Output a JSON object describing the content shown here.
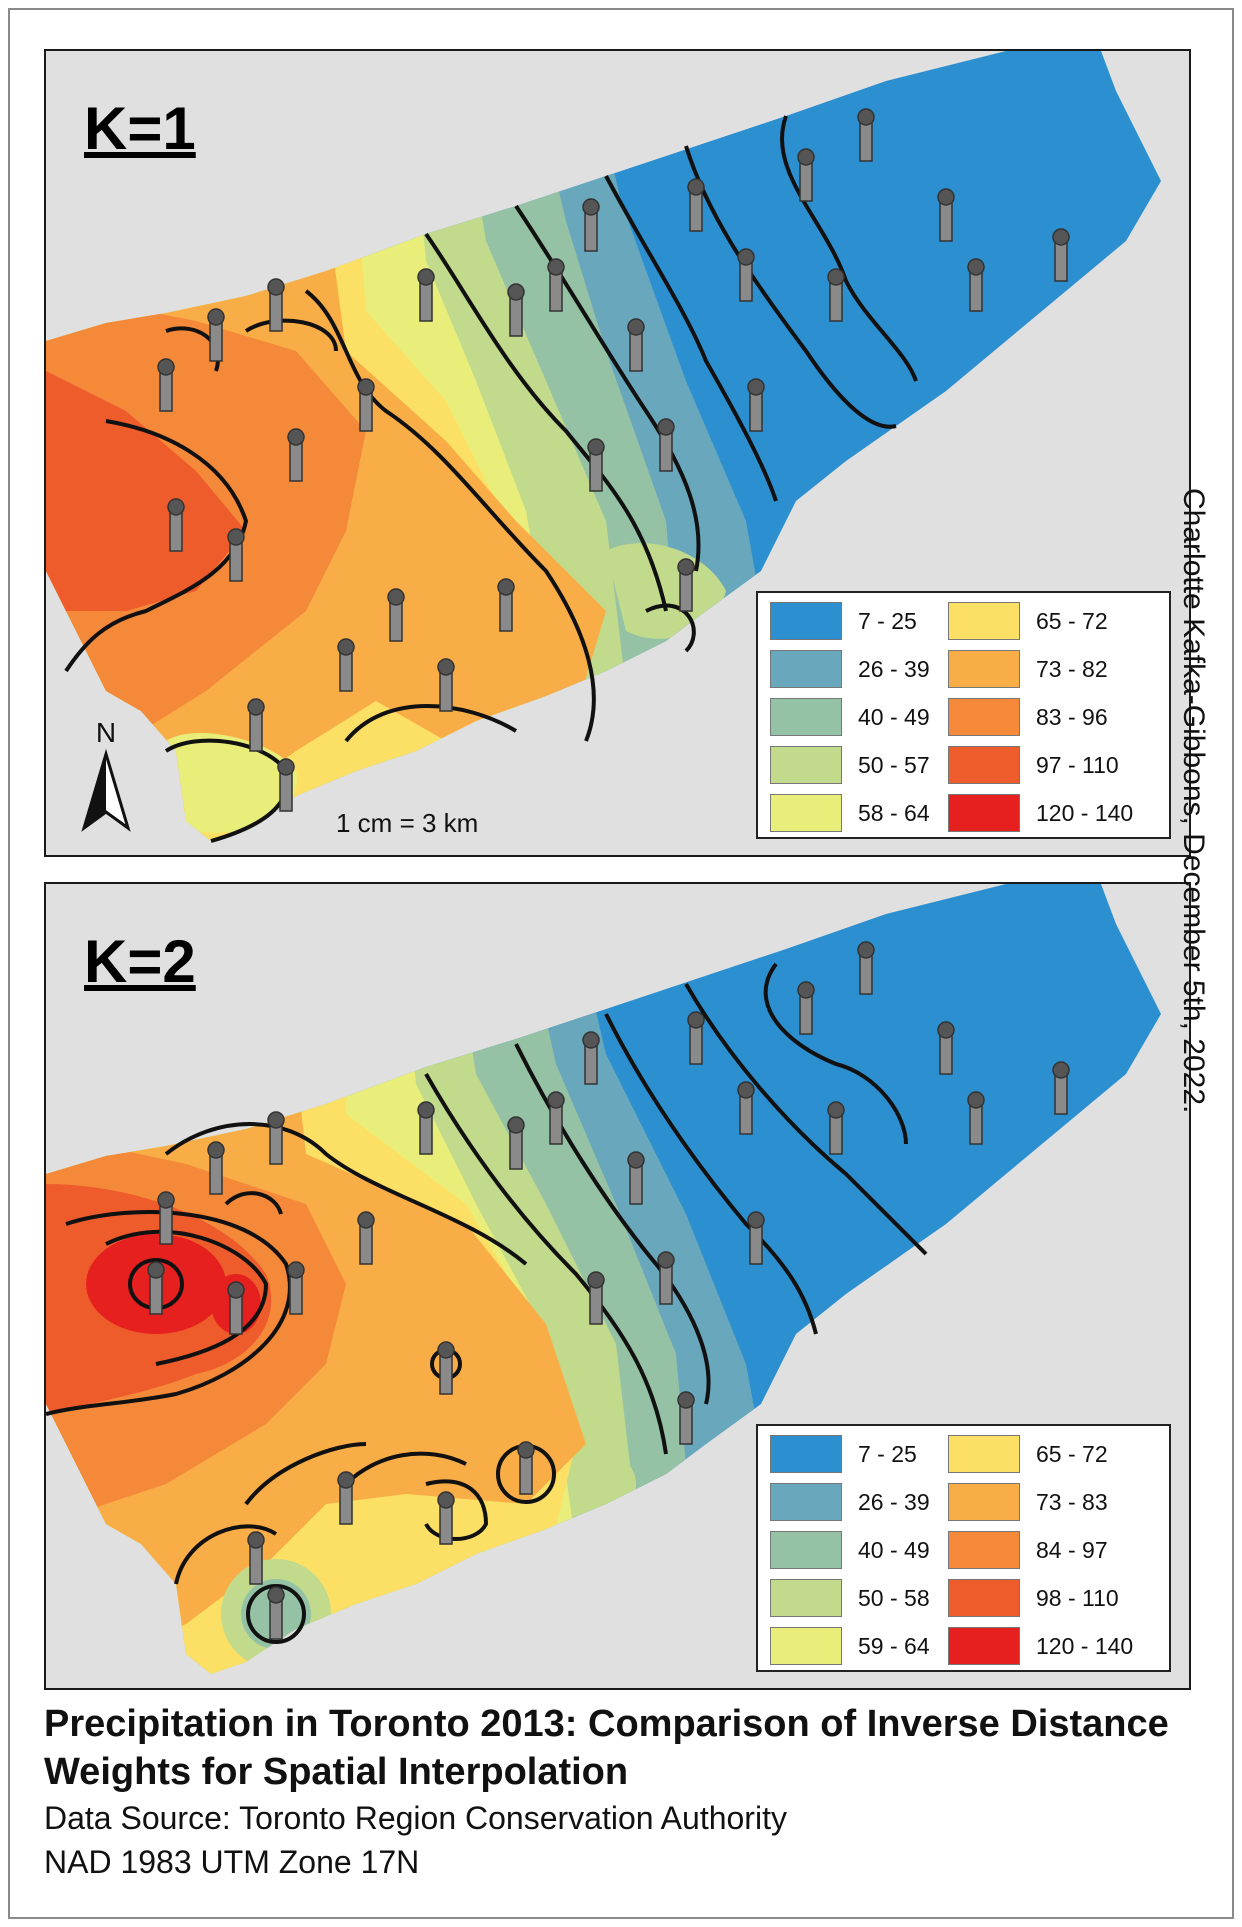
{
  "panels": [
    {
      "k_label": "K=1",
      "legend": [
        {
          "label": "7 - 25",
          "color": "#2b8fd0"
        },
        {
          "label": "26 - 39",
          "color": "#68a7bc"
        },
        {
          "label": "40 - 49",
          "color": "#95c2a5"
        },
        {
          "label": "50 - 57",
          "color": "#c2da8c"
        },
        {
          "label": "58 - 64",
          "color": "#e9ee7a"
        },
        {
          "label": "65 - 72",
          "color": "#fbe065"
        },
        {
          "label": "73 - 82",
          "color": "#f9ad46"
        },
        {
          "label": "83 - 96",
          "color": "#f5893a"
        },
        {
          "label": "97 - 110",
          "color": "#ef5c2b"
        },
        {
          "label": "120 - 140",
          "color": "#e5201f"
        }
      ]
    },
    {
      "k_label": "K=2",
      "legend": [
        {
          "label": "7 - 25",
          "color": "#2b8fd0"
        },
        {
          "label": "26 - 39",
          "color": "#68a7bc"
        },
        {
          "label": "40 - 49",
          "color": "#95c2a5"
        },
        {
          "label": "50 - 58",
          "color": "#c2da8c"
        },
        {
          "label": "59 - 64",
          "color": "#e9ee7a"
        },
        {
          "label": "65 - 72",
          "color": "#fbe065"
        },
        {
          "label": "73 - 83",
          "color": "#f9ad46"
        },
        {
          "label": "84 - 97",
          "color": "#f5893a"
        },
        {
          "label": "98 - 110",
          "color": "#ef5c2b"
        },
        {
          "label": "120 - 140",
          "color": "#e5201f"
        }
      ]
    }
  ],
  "north_label": "N",
  "scale_text": "1 cm = 3 km",
  "credit": "Charlotte Kafka-Gibbons, December 5th, 2022.",
  "title": "Precipitation in Toronto 2013: Comparison of Inverse Distance Weights for Spatial Interpolation",
  "source": "Data Source: Toronto Region Conservation Authority",
  "projection": "NAD 1983 UTM Zone 17N"
}
